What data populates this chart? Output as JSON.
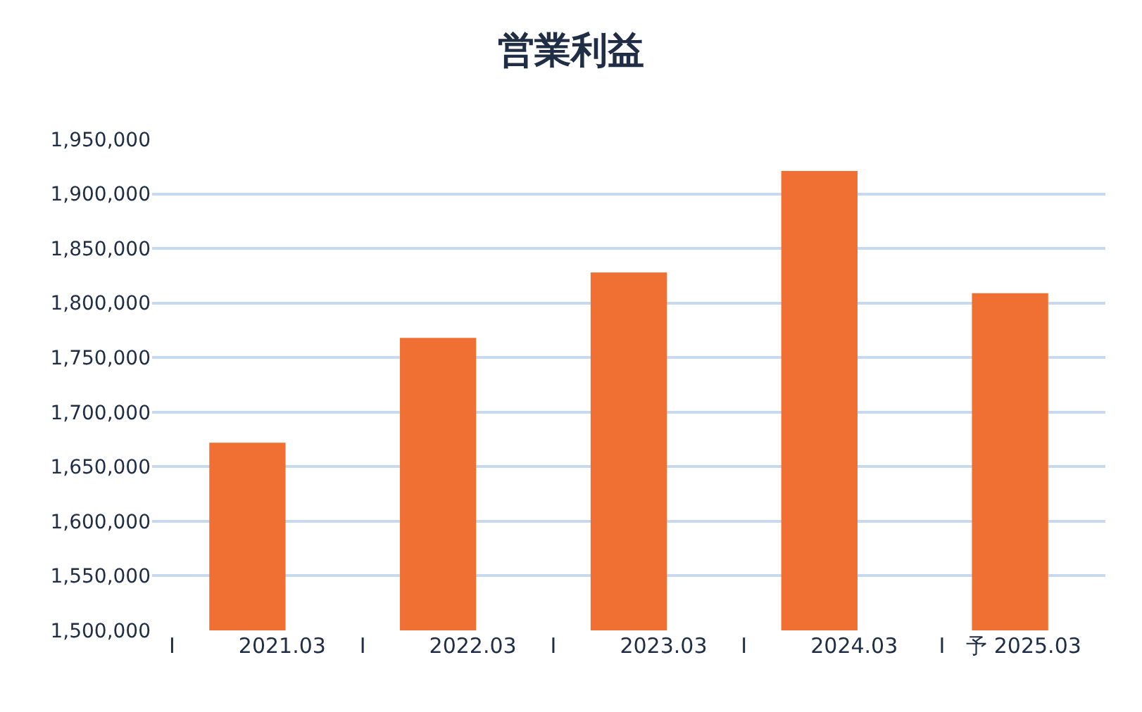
{
  "chart_data": {
    "type": "bar",
    "title": "営業利益",
    "categories": [
      "I　　　2021.03",
      "I　　　2022.03",
      "I　　　2023.03",
      "I　　　2024.03",
      "I　予 2025.03"
    ],
    "values": [
      1672000,
      1768000,
      1828000,
      1921000,
      1809000
    ],
    "color": "#f07033",
    "ylim": [
      1500000,
      1950000
    ],
    "yticks": [
      {
        "value": 1500000,
        "label": "1,500,000"
      },
      {
        "value": 1550000,
        "label": "1,550,000"
      },
      {
        "value": 1600000,
        "label": "1,600,000"
      },
      {
        "value": 1650000,
        "label": "1,650,000"
      },
      {
        "value": 1700000,
        "label": "1,700,000"
      },
      {
        "value": 1750000,
        "label": "1,750,000"
      },
      {
        "value": 1800000,
        "label": "1,800,000"
      },
      {
        "value": 1850000,
        "label": "1,850,000"
      },
      {
        "value": 1900000,
        "label": "1,900,000"
      },
      {
        "value": 1950000,
        "label": "1,950,000"
      }
    ],
    "grid": "y"
  }
}
